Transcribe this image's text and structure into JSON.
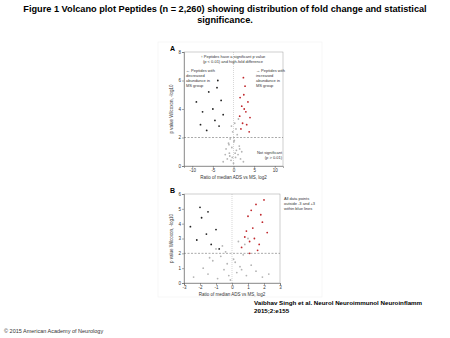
{
  "page": {
    "title": [
      "Figure 1 Volcano plot Peptides (n = 2,260) showing distribution of fold change and statistical",
      "significance."
    ],
    "citation": [
      "Vaibhav Singh et al. Neurol Neuroimmunol Neuroinflamm",
      "2015;2:e155"
    ],
    "copyright": "© 2015 American Academy of Neurology"
  },
  "chart_data": [
    {
      "type": "scatter",
      "panel": "A",
      "marker": "circle",
      "x_label": "Ratio of median ADS vs MS, log2",
      "y_label": "p value Wilcoxon, -log10",
      "xlim": [
        -12,
        12
      ],
      "xticks": [
        -10,
        -5,
        0,
        5,
        10
      ],
      "ylim": [
        0,
        8
      ],
      "yticks": [
        0,
        2,
        4,
        6,
        8
      ],
      "reference_lines": {
        "x": [
          0
        ],
        "y": [
          2
        ]
      },
      "annotations": [
        [
          "↑ Peptides have a significant p value",
          "(p < 0.01) and high-fold difference"
        ],
        [
          "← Peptides with",
          "decreased",
          "abundance in",
          "MS group"
        ],
        [
          "→ Peptides with",
          "increased",
          "abundance in",
          "MS group"
        ],
        [
          "Not significant",
          "(p > 0.01)"
        ]
      ],
      "series": [
        {
          "color": "#b5b5b5",
          "x": [
            -2.5,
            -2,
            -1.8,
            -1.5,
            -1.2,
            -1,
            -0.8,
            -0.6,
            -0.4,
            -0.2,
            0,
            0.1,
            0.3,
            0.5,
            0.7,
            0.9,
            1.1,
            1.4,
            1.7,
            2,
            2.4,
            -0.5,
            0.4,
            -1.1,
            1.2,
            -0.3,
            0.2,
            0.6,
            -0.9,
            1.5
          ],
          "values": [
            0.3,
            0.8,
            1.2,
            0.5,
            1.6,
            0.9,
            1.9,
            0.4,
            1.3,
            2.4,
            0.2,
            1.7,
            3.0,
            0.6,
            1.1,
            2.2,
            0.8,
            1.4,
            0.5,
            1.0,
            0.3,
            2.8,
            0.9,
            1.5,
            3.3,
            0.6,
            1.8,
            2.6,
            0.7,
            1.2
          ]
        },
        {
          "color": "#222222",
          "x": [
            -9,
            -7.5,
            -6,
            -5,
            -4.5,
            -4,
            -3.5,
            -3,
            -2.5,
            -6.5,
            -8,
            -3.8
          ],
          "values": [
            4.5,
            3.8,
            5.2,
            4.0,
            3.2,
            5.5,
            2.8,
            4.6,
            3.6,
            2.5,
            2.9,
            6.0
          ]
        },
        {
          "color": "#c0282d",
          "x": [
            1.5,
            2,
            2.5,
            3,
            3.5,
            1.8,
            2.2,
            2.8,
            3.2,
            1.6,
            2.4,
            4,
            2.6,
            3.8
          ],
          "values": [
            3.5,
            4.2,
            5.0,
            3.8,
            4.5,
            2.6,
            3.0,
            5.6,
            2.9,
            4.8,
            6.2,
            3.4,
            4.0,
            2.4
          ]
        }
      ]
    },
    {
      "type": "scatter",
      "panel": "B",
      "marker": "circle",
      "x_label": "Ratio of median ADS vs MS, log2",
      "y_label": "p value Wilcoxon, -log10",
      "xlim": [
        -3,
        3
      ],
      "xticks": [
        -3,
        -2,
        -1,
        0,
        1,
        2,
        3
      ],
      "ylim": [
        0,
        6
      ],
      "yticks": [
        0,
        1,
        2,
        3,
        4,
        5,
        6
      ],
      "reference_lines": {
        "x": [
          0
        ],
        "y": [
          2
        ]
      },
      "annotations": [
        [
          "All data points",
          "outside -3 and +3",
          "within blue lines"
        ]
      ],
      "series": [
        {
          "color": "#b5b5b5",
          "x": [
            -2.4,
            -1.8,
            -1.5,
            -1.2,
            -0.9,
            -0.7,
            -0.5,
            -0.3,
            -0.1,
            0.1,
            0.3,
            0.5,
            0.7,
            0.9,
            1.2,
            1.5,
            1.9,
            2.3,
            -0.6,
            0.4,
            -1.0,
            0.8,
            -0.2,
            0.2,
            1.0,
            -1.4,
            0.6,
            -0.4
          ],
          "values": [
            0.4,
            1.0,
            0.6,
            1.5,
            0.3,
            1.8,
            0.9,
            1.3,
            0.2,
            1.6,
            0.7,
            1.1,
            1.9,
            0.5,
            1.2,
            0.8,
            0.4,
            0.6,
            2.5,
            2.8,
            2.3,
            2.6,
            0.5,
            1.4,
            3.0,
            1.7,
            0.9,
            2.1
          ]
        },
        {
          "color": "#222222",
          "x": [
            -2.6,
            -2.2,
            -1.9,
            -1.6,
            -1.3,
            -1.0,
            -0.8,
            -2.0,
            -1.5
          ],
          "values": [
            3.8,
            2.9,
            4.4,
            3.3,
            2.6,
            3.6,
            2.3,
            5.1,
            4.8
          ]
        },
        {
          "color": "#c0282d",
          "x": [
            0.6,
            0.8,
            1.0,
            1.1,
            1.3,
            1.5,
            1.7,
            1.9,
            2.2,
            1.2,
            0.9,
            1.6,
            1.4,
            2.0,
            1.8,
            1.1
          ],
          "values": [
            2.4,
            3.1,
            4.5,
            2.8,
            3.7,
            5.3,
            2.6,
            4.1,
            3.4,
            4.9,
            3.5,
            2.2,
            3.0,
            5.6,
            4.6,
            2.0
          ]
        }
      ]
    }
  ]
}
